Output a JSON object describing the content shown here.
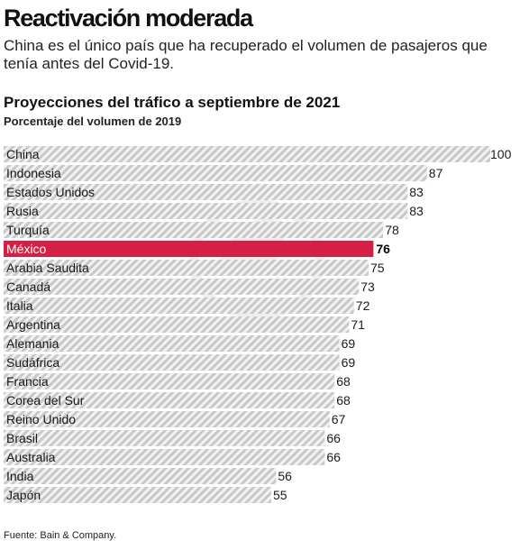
{
  "header": {
    "headline": "Reactivación moderada",
    "subhead": "China es el único país que ha recuperado el volumen de pasajeros que tenía antes del Covid-19."
  },
  "chart_data": {
    "type": "bar",
    "orientation": "horizontal",
    "title": "Proyecciones del tráfico a septiembre de 2021",
    "subtitle": "Porcentaje del volumen de 2019",
    "xlabel": "",
    "ylabel": "",
    "xlim": [
      0,
      100
    ],
    "grid": false,
    "legend": "none",
    "categories": [
      "China",
      "Indonesia",
      "Estados Unidos",
      "Rusia",
      "Turquía",
      "México",
      "Arabia Saudita",
      "Canadá",
      "Italia",
      "Argentina",
      "Alemania",
      "Sudáfrica",
      "Francia",
      "Corea del Sur",
      "Reino Unido",
      "Brasil",
      "Australia",
      "India",
      "Japón"
    ],
    "values": [
      100,
      87,
      83,
      83,
      78,
      76,
      75,
      73,
      72,
      71,
      69,
      69,
      68,
      68,
      67,
      66,
      66,
      56,
      55
    ],
    "highlight": "México",
    "colors": {
      "bar_hatch": "#c8c8c8",
      "bar_base": "#f2f2f2",
      "highlight": "#d51f45"
    }
  },
  "footer": {
    "source": "Fuente: Bain & Company."
  }
}
